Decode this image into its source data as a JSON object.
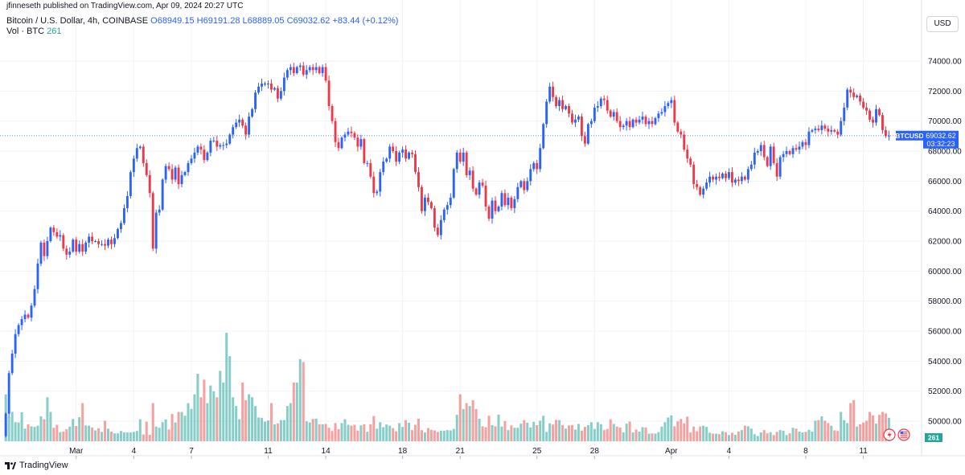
{
  "header": {
    "publisher": "jfinneseth published on TradingView.com, Apr 09, 2024 20:27 UTC",
    "symbol": "Bitcoin / U.S. Dollar, 4h, COINBASE",
    "open": "O68949.15",
    "high": "H69191.28",
    "low": "L68889.05",
    "close": "C69032.62",
    "change": "+83.44 (+0.12%)",
    "vol_label": "Vol · BTC",
    "vol_value": "261"
  },
  "currency_button": "USD",
  "price_tag": {
    "symbol": "BTCUSD",
    "price": "69032.62",
    "countdown": "03:32:23"
  },
  "vol_tag": "261",
  "brand": "TradingView",
  "colors": {
    "up": "#2962ff",
    "down": "#f23645",
    "vol_up": "#26a69a",
    "vol_down": "#ef5350",
    "grid": "#f0f3fa",
    "price_line": "#2962ff"
  },
  "chart_data": {
    "type": "candlestick",
    "title": "Bitcoin / U.S. Dollar, 4h, COINBASE",
    "ylim": [
      48500,
      75500
    ],
    "y_ticks": [
      50000,
      52000,
      54000,
      56000,
      58000,
      60000,
      62000,
      64000,
      66000,
      68000,
      70000,
      72000,
      74000
    ],
    "y_tick_labels": [
      "50000.00",
      "52000.00",
      "54000.00",
      "56000.00",
      "58000.00",
      "60000.00",
      "62000.00",
      "64000.00",
      "66000.00",
      "68000.00",
      "70000.00",
      "72000.00",
      "74000.00"
    ],
    "x_ticks": [
      {
        "label": "Mar",
        "bar": 22
      },
      {
        "label": "4",
        "bar": 40
      },
      {
        "label": "7",
        "bar": 58
      },
      {
        "label": "11",
        "bar": 82
      },
      {
        "label": "14",
        "bar": 100
      },
      {
        "label": "18",
        "bar": 124
      },
      {
        "label": "21",
        "bar": 142
      },
      {
        "label": "25",
        "bar": 166
      },
      {
        "label": "28",
        "bar": 184
      },
      {
        "label": "Apr",
        "bar": 208
      },
      {
        "label": "4",
        "bar": 226
      },
      {
        "label": "8",
        "bar": 250
      },
      {
        "label": "11",
        "bar": 268
      }
    ],
    "last_price": 69032.62,
    "closes": [
      50500,
      53200,
      54500,
      55800,
      56400,
      56800,
      57100,
      56900,
      57700,
      58800,
      60500,
      61900,
      61000,
      62000,
      62900,
      62600,
      62300,
      62400,
      61500,
      61100,
      61300,
      62100,
      61300,
      61800,
      61300,
      61900,
      62300,
      62000,
      62000,
      61800,
      61800,
      61700,
      62100,
      61800,
      62200,
      62800,
      63200,
      64200,
      65000,
      66600,
      67500,
      68200,
      68300,
      67200,
      66400,
      65200,
      61500,
      63900,
      64100,
      66100,
      67000,
      66800,
      66100,
      66900,
      65800,
      66400,
      66600,
      67200,
      67500,
      67900,
      68300,
      68100,
      67400,
      67900,
      68700,
      68700,
      68300,
      68400,
      68400,
      68500,
      69100,
      69600,
      69900,
      70100,
      69700,
      69100,
      70300,
      70800,
      71900,
      72300,
      72500,
      72500,
      72500,
      72100,
      72200,
      71500,
      72000,
      72900,
      73400,
      73600,
      73200,
      73600,
      73700,
      73100,
      73400,
      73600,
      73400,
      73600,
      73200,
      73600,
      72700,
      71000,
      70000,
      68600,
      68200,
      68900,
      69100,
      69300,
      69200,
      68900,
      68300,
      68800,
      67200,
      67200,
      66300,
      65200,
      65300,
      66600,
      67300,
      67500,
      68300,
      68000,
      67300,
      67900,
      68100,
      67500,
      67900,
      67800,
      66600,
      65600,
      64000,
      64900,
      64600,
      64200,
      62900,
      62400,
      63400,
      64100,
      64400,
      64900,
      66800,
      67900,
      67300,
      67900,
      66400,
      66700,
      65500,
      65100,
      65900,
      65700,
      64300,
      63500,
      64700,
      64000,
      64300,
      65200,
      64400,
      64900,
      64200,
      64800,
      65600,
      66000,
      65400,
      66000,
      66800,
      67200,
      66800,
      68200,
      69800,
      71300,
      72300,
      71600,
      71000,
      71400,
      70800,
      71000,
      70500,
      69900,
      70100,
      70300,
      69000,
      68500,
      69800,
      70000,
      70900,
      71000,
      71500,
      71400,
      70700,
      70300,
      70600,
      70000,
      69600,
      69700,
      70000,
      69600,
      70100,
      69900,
      70100,
      70300,
      69800,
      70000,
      69800,
      70200,
      70500,
      70600,
      71000,
      71200,
      71400,
      69900,
      69300,
      69100,
      68100,
      67500,
      67100,
      65800,
      65600,
      65100,
      65500,
      65900,
      66300,
      66100,
      66300,
      66200,
      66500,
      66200,
      66600,
      65900,
      66100,
      66000,
      66300,
      66100,
      66800,
      67100,
      67900,
      68000,
      68400,
      67600,
      67000,
      68300,
      67200,
      66300,
      67600,
      67800,
      68000,
      67800,
      68200,
      68100,
      68300,
      68600,
      68400,
      69300,
      69400,
      69500,
      69400,
      69700,
      69500,
      69300,
      69400,
      69300,
      69100,
      70000,
      70900,
      72100,
      71900,
      71600,
      71700,
      71300,
      70900,
      70700,
      70100,
      69900,
      70800,
      70400,
      69400,
      69000,
      69032.62
    ],
    "volumes": [
      1600,
      830,
      1000,
      650,
      640,
      990,
      430,
      580,
      510,
      490,
      530,
      850,
      750,
      1500,
      1000,
      460,
      560,
      310,
      330,
      410,
      500,
      760,
      520,
      820,
      1300,
      540,
      530,
      470,
      370,
      440,
      320,
      700,
      430,
      330,
      270,
      270,
      350,
      300,
      300,
      300,
      320,
      350,
      750,
      230,
      670,
      220,
      1300,
      500,
      460,
      650,
      740,
      400,
      930,
      640,
      1000,
      1000,
      870,
      1300,
      1100,
      1600,
      2300,
      1500,
      2100,
      1300,
      1900,
      1700,
      1500,
      2400,
      2000,
      3700,
      2900,
      1500,
      1200,
      750,
      2000,
      1400,
      1600,
      1500,
      1200,
      810,
      800,
      670,
      710,
      1300,
      580,
      610,
      720,
      720,
      1200,
      1300,
      2000,
      2000,
      2800,
      2700,
      680,
      640,
      760,
      770,
      580,
      580,
      590,
      460,
      350,
      620,
      410,
      620,
      750,
      560,
      530,
      560,
      360,
      540,
      580,
      320,
      580,
      860,
      430,
      650,
      480,
      570,
      530,
      450,
      340,
      620,
      490,
      720,
      630,
      380,
      560,
      770,
      380,
      300,
      450,
      390,
      370,
      320,
      360,
      360,
      380,
      370,
      420,
      900,
      1600,
      1100,
      1300,
      1200,
      1400,
      1100,
      770,
      510,
      480,
      870,
      550,
      510,
      910,
      500,
      690,
      380,
      540,
      460,
      460,
      600,
      720,
      630,
      470,
      660,
      550,
      700,
      870,
      320,
      610,
      570,
      730,
      720,
      550,
      430,
      540,
      550,
      400,
      590,
      360,
      490,
      550,
      650,
      420,
      650,
      580,
      380,
      420,
      750,
      590,
      500,
      470,
      300,
      600,
      670,
      300,
      400,
      330,
      480,
      470,
      260,
      270,
      260,
      310,
      500,
      650,
      810,
      880,
      510,
      680,
      760,
      610,
      840,
      300,
      500,
      340,
      500,
      530,
      490,
      290,
      260,
      260,
      240,
      340,
      310,
      210,
      290,
      220,
      330,
      380,
      530,
      510,
      430,
      240,
      180,
      300,
      380,
      270,
      310,
      210,
      320,
      380,
      360,
      210,
      270,
      460,
      430,
      330,
      300,
      320,
      390,
      330,
      700,
      720,
      850,
      700,
      620,
      530,
      370,
      350,
      1000,
      720,
      620,
      1300,
      1400,
      500,
      580,
      640,
      700,
      1000,
      880,
      600,
      900,
      1000,
      950,
      800,
      380,
      390,
      350,
      320,
      261
    ]
  }
}
